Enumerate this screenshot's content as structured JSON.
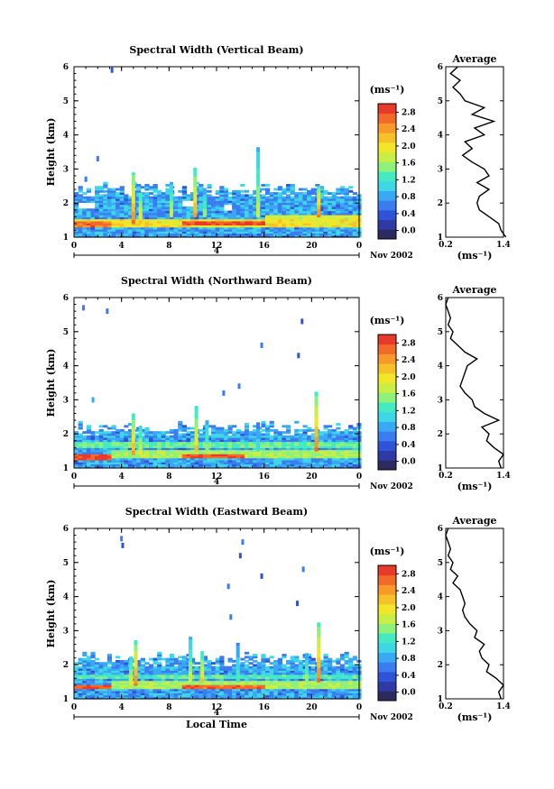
{
  "figure": {
    "xlabel": "Local Time",
    "date_label": "Nov 2002",
    "date_day_tick": "4",
    "colorbar_label": "(ms⁻¹)",
    "avg_title": "Average",
    "avg_xlabel": "(ms⁻¹)",
    "ylabel": "Height (km)"
  },
  "colors": {
    "scale": [
      "#2b2b5e",
      "#2e3aa3",
      "#2f53d6",
      "#3a7df0",
      "#3aa9f5",
      "#3fd7e6",
      "#45ebc0",
      "#8ef27a",
      "#c9ee45",
      "#f2e628",
      "#f7c12a",
      "#f79a2a",
      "#f26a2a",
      "#e83a2a"
    ]
  },
  "chart_data": [
    {
      "type": "heatmap",
      "title": "Spectral Width (Vertical Beam)",
      "x_ticks": [
        "0",
        "4",
        "8",
        "12",
        "16",
        "20",
        "0"
      ],
      "y_ticks": [
        "1",
        "2",
        "3",
        "4",
        "5",
        "6"
      ],
      "xlim": [
        0,
        24
      ],
      "ylim": [
        1,
        6
      ],
      "colorbar_ticks": [
        "0.0",
        "0.4",
        "0.8",
        "1.2",
        "1.6",
        "2.0",
        "2.4",
        "2.8"
      ],
      "colorbar_range": [
        -0.2,
        3.0
      ],
      "top_height_km": 2.4,
      "background_value": 0.8,
      "bands": [
        {
          "t0": 0,
          "t1": 24,
          "h0": 1.3,
          "h1": 1.5,
          "value": 2.0
        },
        {
          "t0": 0,
          "t1": 3,
          "h0": 1.3,
          "h1": 1.45,
          "value": 2.6
        },
        {
          "t0": 9,
          "t1": 16,
          "h0": 1.35,
          "h1": 1.45,
          "value": 2.8
        },
        {
          "t0": 16,
          "t1": 24,
          "h0": 1.5,
          "h1": 1.65,
          "value": 1.8
        }
      ],
      "spikes": [
        {
          "t": 5.0,
          "h0": 1.4,
          "h1": 2.9,
          "value": 2.6
        },
        {
          "t": 5.6,
          "h0": 1.4,
          "h1": 2.3,
          "value": 2.2
        },
        {
          "t": 8.2,
          "h0": 1.6,
          "h1": 2.6,
          "value": 1.8
        },
        {
          "t": 10.2,
          "h0": 1.6,
          "h1": 3.0,
          "value": 2.4
        },
        {
          "t": 11.0,
          "h0": 1.6,
          "h1": 2.4,
          "value": 1.6
        },
        {
          "t": 15.5,
          "h0": 1.6,
          "h1": 3.6,
          "value": 1.8
        },
        {
          "t": 20.6,
          "h0": 1.6,
          "h1": 2.5,
          "value": 2.6
        }
      ],
      "isolated": [
        {
          "t": 3.2,
          "h": 5.9,
          "value": 0.4
        },
        {
          "t": 2.0,
          "h": 3.3,
          "value": 0.5
        },
        {
          "t": 1.0,
          "h": 2.7,
          "value": 0.6
        }
      ],
      "gaps": [
        {
          "t0": 0.2,
          "t1": 1.6,
          "h0": 1.8,
          "h1": 2.0
        },
        {
          "t0": 8.8,
          "t1": 9.8,
          "h0": 1.9,
          "h1": 2.05
        },
        {
          "t0": 12.3,
          "t1": 13.0,
          "h0": 1.75,
          "h1": 1.95
        }
      ],
      "average_profile": {
        "height_km": [
          1.0,
          1.2,
          1.4,
          1.6,
          1.8,
          2.0,
          2.2,
          2.4,
          2.6,
          2.8,
          3.0,
          3.2,
          3.4,
          3.6,
          3.8,
          4.0,
          4.2,
          4.4,
          4.6,
          4.8,
          5.0,
          5.2,
          5.4,
          5.6,
          5.8,
          6.0
        ],
        "value": [
          1.45,
          1.35,
          1.3,
          1.1,
          0.9,
          0.85,
          0.9,
          1.1,
          0.85,
          1.1,
          1.0,
          0.75,
          0.55,
          0.75,
          0.6,
          1.0,
          0.8,
          1.2,
          0.75,
          1.0,
          0.6,
          0.5,
          0.35,
          0.5,
          0.3,
          0.45
        ],
        "xlim": [
          0.2,
          1.4
        ],
        "x_ticks": [
          "0.2",
          "1.4"
        ],
        "y_ticks": [
          "1",
          "2",
          "3",
          "4",
          "5",
          "6"
        ]
      }
    },
    {
      "type": "heatmap",
      "title": "Spectral Width (Northward Beam)",
      "x_ticks": [
        "0",
        "4",
        "8",
        "12",
        "16",
        "20",
        "0"
      ],
      "y_ticks": [
        "1",
        "2",
        "3",
        "4",
        "5",
        "6"
      ],
      "xlim": [
        0,
        24
      ],
      "ylim": [
        1,
        6
      ],
      "colorbar_ticks": [
        "0.0",
        "0.4",
        "0.8",
        "1.2",
        "1.6",
        "2.0",
        "2.4",
        "2.8"
      ],
      "colorbar_range": [
        -0.2,
        3.0
      ],
      "top_height_km": 2.2,
      "background_value": 0.8,
      "bands": [
        {
          "t0": 0,
          "t1": 3,
          "h0": 1.2,
          "h1": 1.4,
          "value": 2.8
        },
        {
          "t0": 3,
          "t1": 24,
          "h0": 1.3,
          "h1": 1.5,
          "value": 1.6
        },
        {
          "t0": 9,
          "t1": 14,
          "h0": 1.3,
          "h1": 1.4,
          "value": 2.8
        },
        {
          "t0": 0,
          "t1": 24,
          "h0": 1.6,
          "h1": 1.75,
          "value": 1.4
        }
      ],
      "spikes": [
        {
          "t": 5.0,
          "h0": 1.4,
          "h1": 2.6,
          "value": 2.4
        },
        {
          "t": 5.6,
          "h0": 1.4,
          "h1": 2.2,
          "value": 2.0
        },
        {
          "t": 10.3,
          "h0": 1.5,
          "h1": 2.8,
          "value": 2.2
        },
        {
          "t": 11.2,
          "h0": 1.5,
          "h1": 2.4,
          "value": 1.6
        },
        {
          "t": 20.4,
          "h0": 1.5,
          "h1": 3.2,
          "value": 2.6
        },
        {
          "t": 15.5,
          "h0": 1.5,
          "h1": 2.3,
          "value": 1.2
        }
      ],
      "isolated": [
        {
          "t": 0.8,
          "h": 5.7,
          "value": 0.6
        },
        {
          "t": 2.8,
          "h": 5.6,
          "value": 0.5
        },
        {
          "t": 1.6,
          "h": 3.0,
          "value": 0.8
        },
        {
          "t": 15.8,
          "h": 4.6,
          "value": 0.5
        },
        {
          "t": 18.9,
          "h": 4.3,
          "value": 0.4
        },
        {
          "t": 19.2,
          "h": 5.3,
          "value": 0.4
        },
        {
          "t": 13.9,
          "h": 3.4,
          "value": 0.5
        },
        {
          "t": 12.6,
          "h": 3.2,
          "value": 0.6
        }
      ],
      "gaps": [],
      "average_profile": {
        "height_km": [
          1.0,
          1.2,
          1.4,
          1.6,
          1.8,
          2.0,
          2.2,
          2.4,
          2.6,
          2.8,
          3.0,
          3.2,
          3.4,
          3.6,
          3.8,
          4.0,
          4.2,
          4.4,
          4.6,
          4.8,
          5.0,
          5.2,
          5.4,
          5.6,
          5.8,
          6.0
        ],
        "value": [
          1.35,
          1.3,
          1.4,
          1.2,
          1.05,
          1.1,
          0.95,
          1.3,
          1.0,
          0.8,
          0.75,
          0.6,
          0.5,
          0.55,
          0.6,
          0.65,
          0.85,
          0.6,
          0.45,
          0.3,
          0.35,
          0.25,
          0.3,
          0.25,
          0.2,
          0.25
        ],
        "xlim": [
          0.2,
          1.4
        ],
        "x_ticks": [
          "0.2",
          "1.4"
        ],
        "y_ticks": [
          "1",
          "2",
          "3",
          "4",
          "5",
          "6"
        ]
      }
    },
    {
      "type": "heatmap",
      "title": "Spectral Width (Eastward Beam)",
      "x_ticks": [
        "0",
        "4",
        "8",
        "12",
        "16",
        "20",
        "0"
      ],
      "y_ticks": [
        "1",
        "2",
        "3",
        "4",
        "5",
        "6"
      ],
      "xlim": [
        0,
        24
      ],
      "ylim": [
        1,
        6
      ],
      "colorbar_ticks": [
        "0.0",
        "0.4",
        "0.8",
        "1.2",
        "1.6",
        "2.0",
        "2.4",
        "2.8"
      ],
      "colorbar_range": [
        -0.2,
        3.0
      ],
      "top_height_km": 2.2,
      "background_value": 0.8,
      "bands": [
        {
          "t0": 0,
          "t1": 3,
          "h0": 1.25,
          "h1": 1.4,
          "value": 2.8
        },
        {
          "t0": 3,
          "t1": 24,
          "h0": 1.3,
          "h1": 1.5,
          "value": 1.6
        },
        {
          "t0": 9,
          "t1": 16,
          "h0": 1.3,
          "h1": 1.4,
          "value": 2.7
        },
        {
          "t0": 0,
          "t1": 24,
          "h0": 1.55,
          "h1": 1.7,
          "value": 1.3
        }
      ],
      "spikes": [
        {
          "t": 5.2,
          "h0": 1.4,
          "h1": 2.7,
          "value": 2.6
        },
        {
          "t": 4.8,
          "h0": 1.4,
          "h1": 2.2,
          "value": 2.0
        },
        {
          "t": 9.8,
          "h0": 1.5,
          "h1": 2.8,
          "value": 1.8
        },
        {
          "t": 10.8,
          "h0": 1.5,
          "h1": 2.4,
          "value": 2.2
        },
        {
          "t": 13.8,
          "h0": 1.5,
          "h1": 2.6,
          "value": 1.4
        },
        {
          "t": 20.6,
          "h0": 1.5,
          "h1": 3.2,
          "value": 2.6
        },
        {
          "t": 19.6,
          "h0": 1.5,
          "h1": 2.3,
          "value": 1.6
        }
      ],
      "isolated": [
        {
          "t": 4.0,
          "h": 5.7,
          "value": 0.5
        },
        {
          "t": 4.1,
          "h": 5.5,
          "value": 0.4
        },
        {
          "t": 14.2,
          "h": 5.6,
          "value": 0.5
        },
        {
          "t": 14.0,
          "h": 5.2,
          "value": 0.4
        },
        {
          "t": 15.8,
          "h": 4.6,
          "value": 0.3
        },
        {
          "t": 19.3,
          "h": 4.8,
          "value": 0.6
        },
        {
          "t": 13.0,
          "h": 4.3,
          "value": 0.5
        },
        {
          "t": 18.8,
          "h": 3.8,
          "value": 0.4
        },
        {
          "t": 13.2,
          "h": 3.4,
          "value": 0.6
        }
      ],
      "gaps": [],
      "average_profile": {
        "height_km": [
          1.0,
          1.2,
          1.4,
          1.6,
          1.8,
          2.0,
          2.2,
          2.4,
          2.6,
          2.8,
          3.0,
          3.2,
          3.4,
          3.6,
          3.8,
          4.0,
          4.2,
          4.4,
          4.6,
          4.8,
          5.0,
          5.2,
          5.4,
          5.6,
          5.8,
          6.0
        ],
        "value": [
          1.35,
          1.3,
          1.4,
          1.25,
          1.05,
          1.1,
          0.95,
          0.9,
          1.0,
          0.8,
          0.85,
          0.7,
          0.6,
          0.55,
          0.6,
          0.55,
          0.5,
          0.35,
          0.45,
          0.3,
          0.35,
          0.25,
          0.3,
          0.25,
          0.2,
          0.25
        ],
        "xlim": [
          0.2,
          1.4
        ],
        "x_ticks": [
          "0.2",
          "1.4"
        ],
        "y_ticks": [
          "1",
          "2",
          "3",
          "4",
          "5",
          "6"
        ]
      }
    }
  ]
}
